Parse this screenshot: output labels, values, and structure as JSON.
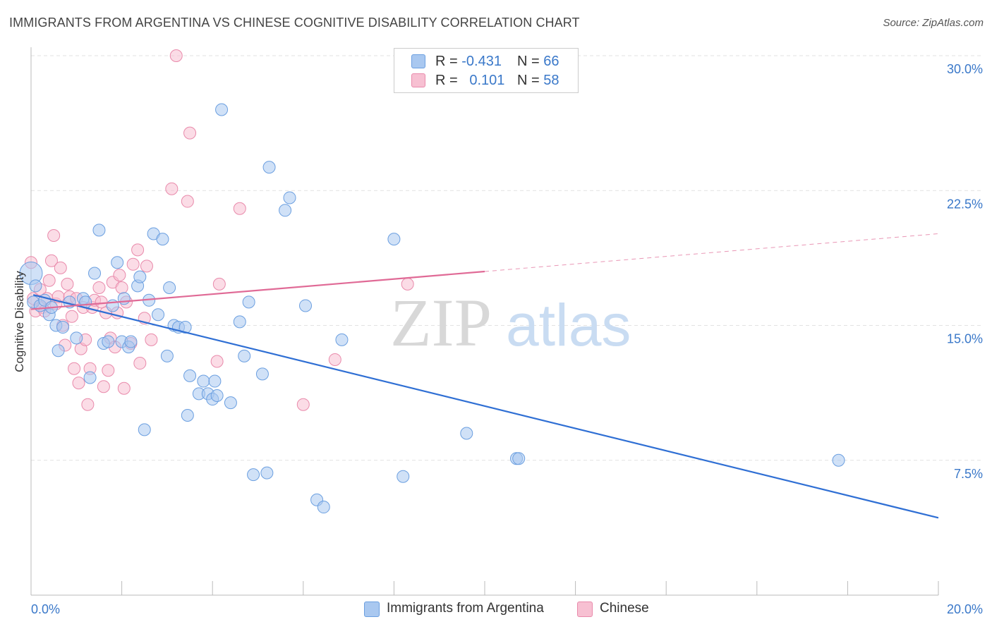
{
  "header": {
    "title": "IMMIGRANTS FROM ARGENTINA VS CHINESE COGNITIVE DISABILITY CORRELATION CHART",
    "source": "Source: ZipAtlas.com"
  },
  "legend": {
    "rows": [
      {
        "r_label": "R =",
        "r_value": "-0.431",
        "n_label": "N =",
        "n_value": "66",
        "color": "#a9c8f0",
        "border": "#6b9fe0"
      },
      {
        "r_label": "R =",
        "r_value": "0.101",
        "n_label": "N =",
        "n_value": "58",
        "color": "#f7c0d2",
        "border": "#e98aab"
      }
    ]
  },
  "watermark": {
    "zip": "ZIP",
    "atlas": "atlas"
  },
  "chart_data": {
    "type": "scatter",
    "title": "IMMIGRANTS FROM ARGENTINA VS CHINESE COGNITIVE DISABILITY CORRELATION CHART",
    "xlabel": "",
    "ylabel": "Cognitive Disability",
    "xlim": [
      0,
      20
    ],
    "ylim": [
      0,
      30
    ],
    "x_tick_labels": [
      "0.0%",
      "20.0%"
    ],
    "y_ticks": [
      7.5,
      15.0,
      22.5,
      30.0
    ],
    "y_tick_labels": [
      "7.5%",
      "15.0%",
      "22.5%",
      "30.0%"
    ],
    "grid": true,
    "legend_position": "top-center",
    "series": [
      {
        "name": "Immigrants from Argentina",
        "color": "#6b9fe0",
        "fill": "#a9c8f0",
        "trend_color": "#2f6fd4",
        "trend": {
          "x": [
            0.05,
            20
          ],
          "y": [
            16.7,
            4.3
          ]
        },
        "points": [
          [
            0.0,
            17.9
          ],
          [
            0.05,
            16.3
          ],
          [
            0.1,
            17.2
          ],
          [
            0.2,
            16.1
          ],
          [
            0.3,
            16.4
          ],
          [
            0.4,
            15.6
          ],
          [
            0.55,
            15.0
          ],
          [
            0.6,
            13.6
          ],
          [
            0.7,
            14.9
          ],
          [
            0.85,
            16.3
          ],
          [
            1.0,
            14.3
          ],
          [
            1.15,
            16.5
          ],
          [
            1.2,
            16.3
          ],
          [
            1.3,
            12.1
          ],
          [
            1.4,
            17.9
          ],
          [
            1.5,
            20.3
          ],
          [
            1.6,
            14.0
          ],
          [
            1.7,
            14.1
          ],
          [
            1.8,
            16.1
          ],
          [
            1.9,
            18.5
          ],
          [
            2.0,
            14.1
          ],
          [
            2.05,
            16.5
          ],
          [
            2.15,
            13.8
          ],
          [
            2.2,
            14.1
          ],
          [
            2.35,
            17.2
          ],
          [
            2.4,
            17.7
          ],
          [
            2.5,
            9.2
          ],
          [
            2.6,
            16.4
          ],
          [
            2.7,
            20.1
          ],
          [
            2.8,
            15.6
          ],
          [
            2.9,
            19.8
          ],
          [
            3.0,
            13.3
          ],
          [
            3.05,
            17.1
          ],
          [
            3.15,
            15.0
          ],
          [
            3.25,
            14.9
          ],
          [
            3.4,
            14.9
          ],
          [
            3.45,
            10.0
          ],
          [
            3.5,
            12.2
          ],
          [
            3.7,
            11.2
          ],
          [
            3.8,
            11.9
          ],
          [
            3.9,
            11.2
          ],
          [
            4.0,
            10.9
          ],
          [
            4.05,
            11.9
          ],
          [
            4.1,
            11.1
          ],
          [
            4.2,
            27.0
          ],
          [
            4.4,
            10.7
          ],
          [
            4.6,
            15.2
          ],
          [
            4.7,
            13.3
          ],
          [
            4.8,
            16.3
          ],
          [
            4.9,
            6.7
          ],
          [
            5.1,
            12.3
          ],
          [
            5.2,
            6.8
          ],
          [
            5.25,
            23.8
          ],
          [
            5.6,
            21.4
          ],
          [
            5.7,
            22.1
          ],
          [
            6.05,
            16.1
          ],
          [
            6.3,
            5.3
          ],
          [
            6.45,
            4.9
          ],
          [
            6.85,
            14.2
          ],
          [
            8.0,
            19.8
          ],
          [
            8.2,
            6.6
          ],
          [
            9.6,
            9.0
          ],
          [
            10.7,
            7.6
          ],
          [
            10.75,
            7.6
          ],
          [
            17.8,
            7.5
          ],
          [
            0.45,
            16.0
          ]
        ]
      },
      {
        "name": "Chinese",
        "color": "#e98aab",
        "fill": "#f7c0d2",
        "trend_color": "#e06a96",
        "trend": {
          "x": [
            0.0,
            10.0
          ],
          "y": [
            15.9,
            18.0
          ]
        },
        "trend_ext": {
          "x": [
            10.0,
            20.0
          ],
          "y": [
            18.0,
            20.1
          ]
        },
        "points": [
          [
            0.0,
            18.5
          ],
          [
            0.05,
            16.5
          ],
          [
            0.1,
            15.8
          ],
          [
            0.2,
            17.0
          ],
          [
            0.25,
            16.0
          ],
          [
            0.3,
            15.8
          ],
          [
            0.35,
            16.5
          ],
          [
            0.4,
            17.5
          ],
          [
            0.45,
            18.6
          ],
          [
            0.5,
            20.0
          ],
          [
            0.55,
            16.2
          ],
          [
            0.6,
            16.6
          ],
          [
            0.65,
            18.2
          ],
          [
            0.7,
            15.0
          ],
          [
            0.75,
            13.9
          ],
          [
            0.8,
            17.3
          ],
          [
            0.85,
            16.6
          ],
          [
            0.9,
            15.5
          ],
          [
            0.95,
            12.6
          ],
          [
            1.0,
            16.5
          ],
          [
            1.05,
            11.8
          ],
          [
            1.1,
            13.7
          ],
          [
            1.15,
            16.0
          ],
          [
            1.2,
            14.2
          ],
          [
            1.25,
            10.6
          ],
          [
            1.3,
            12.6
          ],
          [
            1.35,
            16.0
          ],
          [
            1.4,
            16.4
          ],
          [
            1.5,
            17.1
          ],
          [
            1.55,
            16.3
          ],
          [
            1.6,
            11.6
          ],
          [
            1.65,
            15.7
          ],
          [
            1.7,
            12.5
          ],
          [
            1.75,
            14.3
          ],
          [
            1.8,
            17.4
          ],
          [
            1.85,
            13.8
          ],
          [
            1.9,
            15.7
          ],
          [
            1.95,
            17.8
          ],
          [
            2.0,
            17.1
          ],
          [
            2.05,
            11.5
          ],
          [
            2.1,
            16.3
          ],
          [
            2.2,
            14.0
          ],
          [
            2.25,
            18.4
          ],
          [
            2.35,
            19.2
          ],
          [
            2.4,
            12.9
          ],
          [
            2.5,
            15.4
          ],
          [
            2.55,
            18.3
          ],
          [
            2.65,
            14.2
          ],
          [
            3.1,
            22.6
          ],
          [
            3.2,
            30.0
          ],
          [
            3.45,
            21.9
          ],
          [
            3.5,
            25.7
          ],
          [
            4.1,
            13.0
          ],
          [
            4.15,
            17.3
          ],
          [
            4.6,
            21.5
          ],
          [
            6.0,
            10.6
          ],
          [
            6.7,
            13.1
          ],
          [
            8.3,
            17.3
          ]
        ]
      }
    ]
  },
  "x_axis": {
    "min_label": "0.0%",
    "max_label": "20.0%"
  },
  "y_axis": {
    "label": "Cognitive Disability"
  }
}
